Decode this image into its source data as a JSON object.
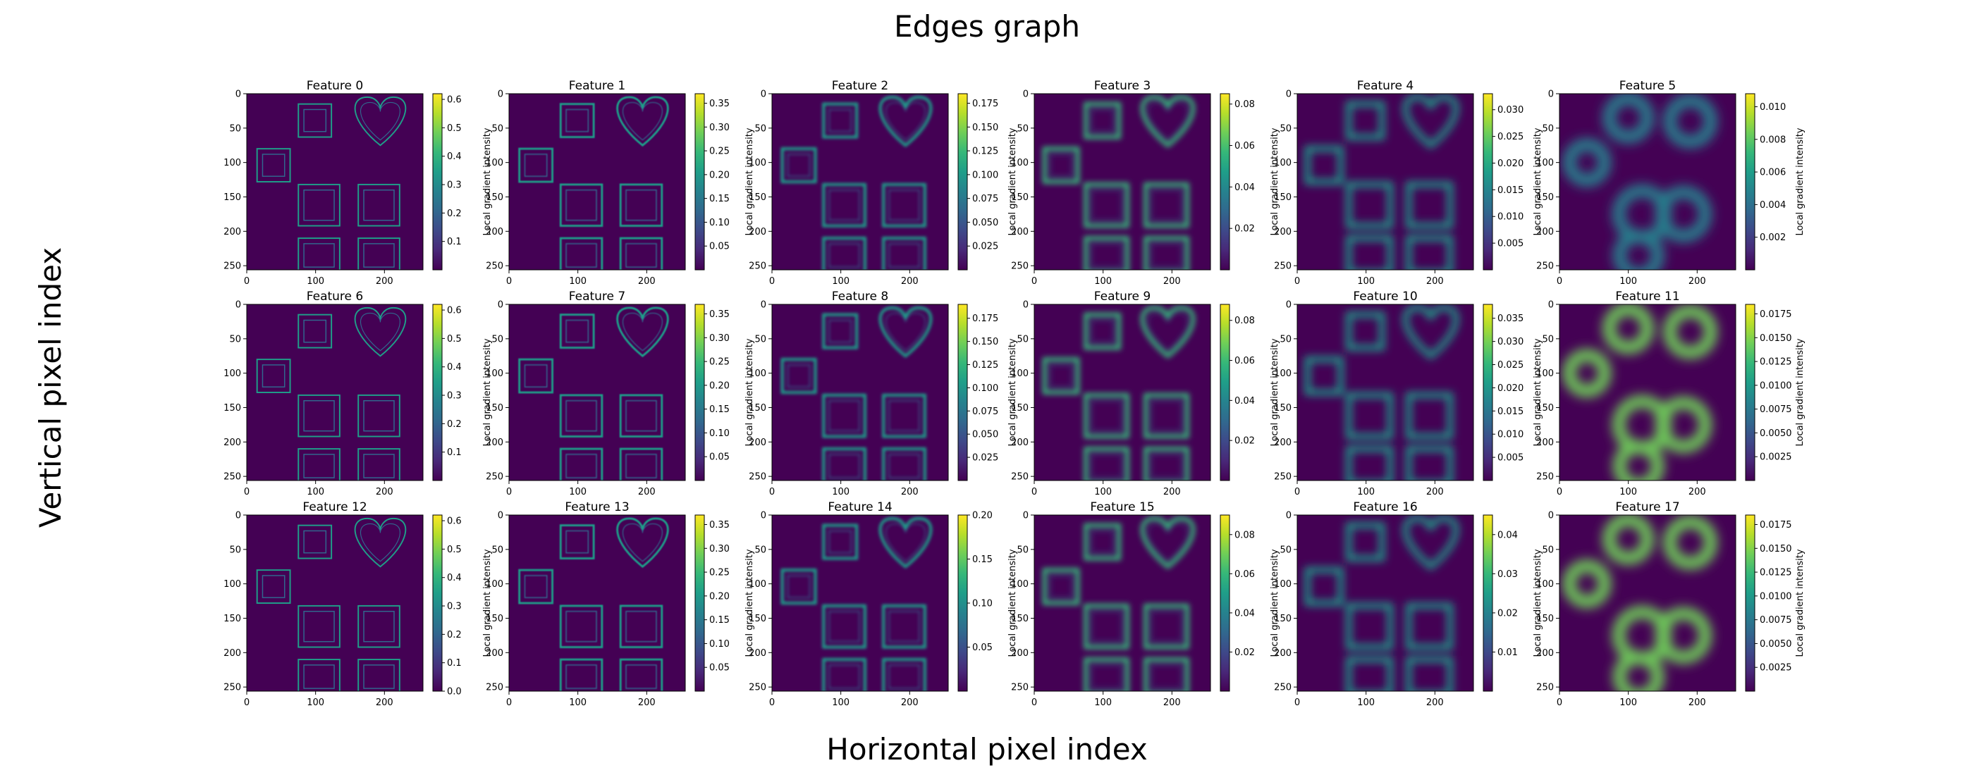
{
  "figure": {
    "title": "Edges graph",
    "xlabel": "Horizontal pixel index",
    "ylabel": "Vertical pixel index"
  },
  "colors": {
    "viridis": [
      "#440154",
      "#482878",
      "#3e4989",
      "#31688e",
      "#26828e",
      "#1f9e89",
      "#35b779",
      "#6ece58",
      "#b5de2b",
      "#fde725"
    ],
    "background": "#ffffff"
  },
  "chart_data": {
    "type": "heatmap",
    "layout": "grid 3x6",
    "colormap": "viridis",
    "colorbar_label": "Local gradient intensity",
    "x_ticks": [
      0,
      100,
      200
    ],
    "y_ticks": [
      0,
      50,
      100,
      150,
      200,
      250
    ],
    "xlim": [
      0,
      255
    ],
    "ylim": [
      255,
      0
    ],
    "grid": false,
    "panels": [
      {
        "title": "Feature 0",
        "cbar_ticks": [
          "0.1",
          "0.2",
          "0.3",
          "0.4",
          "0.5",
          "0.6"
        ],
        "cbar_range": [
          0.0,
          0.62
        ],
        "blur": 0.0
      },
      {
        "title": "Feature 1",
        "cbar_ticks": [
          "0.05",
          "0.10",
          "0.15",
          "0.20",
          "0.25",
          "0.30",
          "0.35"
        ],
        "cbar_range": [
          0.0,
          0.37
        ],
        "blur": 0.1
      },
      {
        "title": "Feature 2",
        "cbar_ticks": [
          "0.025",
          "0.050",
          "0.075",
          "0.100",
          "0.125",
          "0.150",
          "0.175"
        ],
        "cbar_range": [
          0.0,
          0.185
        ],
        "blur": 0.25
      },
      {
        "title": "Feature 3",
        "cbar_ticks": [
          "0.02",
          "0.04",
          "0.06",
          "0.08"
        ],
        "cbar_range": [
          0.0,
          0.085
        ],
        "blur": 0.45
      },
      {
        "title": "Feature 4",
        "cbar_ticks": [
          "0.005",
          "0.010",
          "0.015",
          "0.020",
          "0.025",
          "0.030"
        ],
        "cbar_range": [
          0.0,
          0.033
        ],
        "blur": 0.7
      },
      {
        "title": "Feature 5",
        "cbar_ticks": [
          "0.002",
          "0.004",
          "0.006",
          "0.008",
          "0.010"
        ],
        "cbar_range": [
          0.0,
          0.0108
        ],
        "blur": 0.95
      },
      {
        "title": "Feature 6",
        "cbar_ticks": [
          "0.1",
          "0.2",
          "0.3",
          "0.4",
          "0.5",
          "0.6"
        ],
        "cbar_range": [
          0.0,
          0.62
        ],
        "blur": 0.0
      },
      {
        "title": "Feature 7",
        "cbar_ticks": [
          "0.05",
          "0.10",
          "0.15",
          "0.20",
          "0.25",
          "0.30",
          "0.35"
        ],
        "cbar_range": [
          0.0,
          0.37
        ],
        "blur": 0.1
      },
      {
        "title": "Feature 8",
        "cbar_ticks": [
          "0.025",
          "0.050",
          "0.075",
          "0.100",
          "0.125",
          "0.150",
          "0.175"
        ],
        "cbar_range": [
          0.0,
          0.19
        ],
        "blur": 0.25
      },
      {
        "title": "Feature 9",
        "cbar_ticks": [
          "0.02",
          "0.04",
          "0.06",
          "0.08"
        ],
        "cbar_range": [
          0.0,
          0.088
        ],
        "blur": 0.45
      },
      {
        "title": "Feature 10",
        "cbar_ticks": [
          "0.005",
          "0.010",
          "0.015",
          "0.020",
          "0.025",
          "0.030",
          "0.035"
        ],
        "cbar_range": [
          0.0,
          0.038
        ],
        "blur": 0.7
      },
      {
        "title": "Feature 11",
        "cbar_ticks": [
          "0.0025",
          "0.0050",
          "0.0075",
          "0.0100",
          "0.0125",
          "0.0150",
          "0.0175"
        ],
        "cbar_range": [
          0.0,
          0.0185
        ],
        "blur": 0.95
      },
      {
        "title": "Feature 12",
        "cbar_ticks": [
          "0.0",
          "0.1",
          "0.2",
          "0.3",
          "0.4",
          "0.5",
          "0.6"
        ],
        "cbar_range": [
          0.0,
          0.62
        ],
        "blur": 0.0
      },
      {
        "title": "Feature 13",
        "cbar_ticks": [
          "0.05",
          "0.10",
          "0.15",
          "0.20",
          "0.25",
          "0.30",
          "0.35"
        ],
        "cbar_range": [
          0.0,
          0.37
        ],
        "blur": 0.1
      },
      {
        "title": "Feature 14",
        "cbar_ticks": [
          "0.05",
          "0.10",
          "0.15",
          "0.20"
        ],
        "cbar_range": [
          0.0,
          0.2
        ],
        "blur": 0.25
      },
      {
        "title": "Feature 15",
        "cbar_ticks": [
          "0.02",
          "0.04",
          "0.06",
          "0.08"
        ],
        "cbar_range": [
          0.0,
          0.09
        ],
        "blur": 0.45
      },
      {
        "title": "Feature 16",
        "cbar_ticks": [
          "0.01",
          "0.02",
          "0.03",
          "0.04"
        ],
        "cbar_range": [
          0.0,
          0.045
        ],
        "blur": 0.7
      },
      {
        "title": "Feature 17",
        "cbar_ticks": [
          "0.0025",
          "0.0050",
          "0.0075",
          "0.0100",
          "0.0125",
          "0.0150",
          "0.0175"
        ],
        "cbar_range": [
          0.0,
          0.0185
        ],
        "blur": 0.95
      }
    ]
  }
}
